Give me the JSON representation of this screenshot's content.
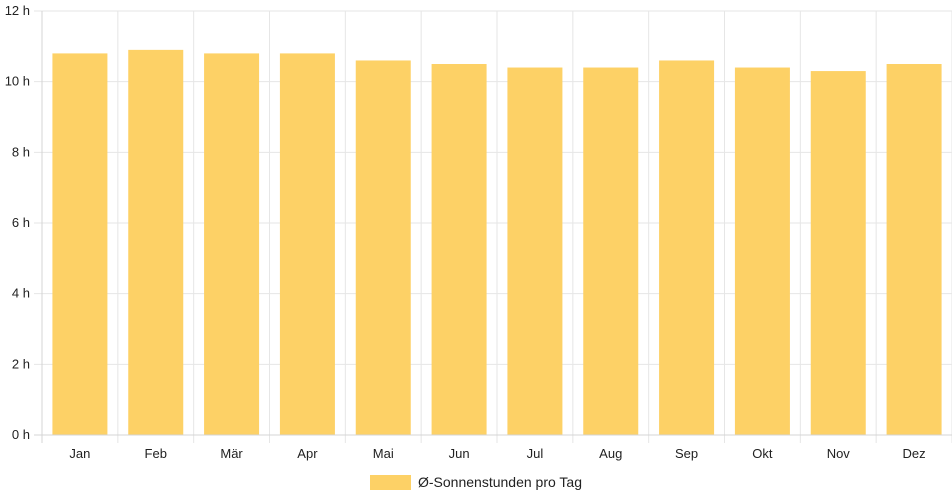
{
  "chart_data": {
    "type": "bar",
    "categories": [
      "Jan",
      "Feb",
      "Mär",
      "Apr",
      "Mai",
      "Jun",
      "Jul",
      "Aug",
      "Sep",
      "Okt",
      "Nov",
      "Dez"
    ],
    "series": [
      {
        "name": "Ø-Sonnenstunden pro Tag",
        "values": [
          10.8,
          10.9,
          10.8,
          10.8,
          10.6,
          10.5,
          10.4,
          10.4,
          10.6,
          10.4,
          10.3,
          10.5
        ],
        "color": "#fdd166"
      }
    ],
    "y_ticks": [
      "0 h",
      "2 h",
      "4 h",
      "6 h",
      "8 h",
      "10 h",
      "12 h"
    ],
    "ylim": [
      0,
      12
    ],
    "grid": true,
    "legend": "bottom-center"
  }
}
